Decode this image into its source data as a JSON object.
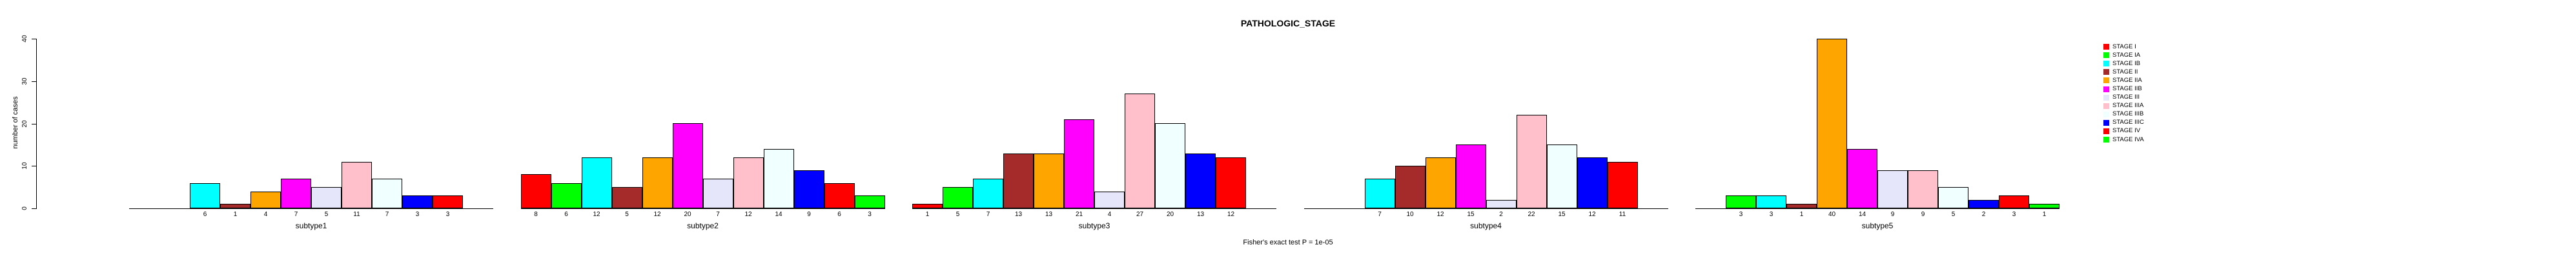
{
  "title": "PATHOLOGIC_STAGE",
  "caption": "Fisher's exact test P = 1e-05",
  "y_axis": {
    "label": "number of cases"
  },
  "chart_data": {
    "type": "bar",
    "title": "PATHOLOGIC_STAGE",
    "xlabel": "",
    "ylabel": "number of cases",
    "ylim": [
      0,
      40
    ],
    "y_ticks": [
      0,
      10,
      20,
      30,
      40
    ],
    "grid": false,
    "legend_position": "top-right",
    "annotation": "Fisher's exact test P = 1e-05",
    "stages": [
      {
        "name": "STAGE I",
        "color": "#FF0000"
      },
      {
        "name": "STAGE IA",
        "color": "#00FF00"
      },
      {
        "name": "STAGE IB",
        "color": "#00FFFF"
      },
      {
        "name": "STAGE II",
        "color": "#A52A2A"
      },
      {
        "name": "STAGE IIA",
        "color": "#FFA500"
      },
      {
        "name": "STAGE IIB",
        "color": "#FF00FF"
      },
      {
        "name": "STAGE III",
        "color": "#E6E6FA"
      },
      {
        "name": "STAGE IIIA",
        "color": "#FFC0CB"
      },
      {
        "name": "STAGE IIIB",
        "color": "#F0FFFF"
      },
      {
        "name": "STAGE IIIC",
        "color": "#0000FF"
      },
      {
        "name": "STAGE IV",
        "color": "#FF0000"
      },
      {
        "name": "STAGE IVA",
        "color": "#00FF00"
      }
    ],
    "categories": [
      "STAGE I",
      "STAGE IA",
      "STAGE IB",
      "STAGE II",
      "STAGE IIA",
      "STAGE IIB",
      "STAGE III",
      "STAGE IIIA",
      "STAGE IIIB",
      "STAGE IIIC",
      "STAGE IV",
      "STAGE IVA"
    ],
    "groups": [
      {
        "label": "subtype1",
        "values": [
          0,
          0,
          6,
          1,
          4,
          7,
          5,
          11,
          7,
          3,
          3,
          0
        ]
      },
      {
        "label": "subtype2",
        "values": [
          8,
          6,
          12,
          5,
          12,
          20,
          7,
          12,
          14,
          9,
          6,
          3
        ]
      },
      {
        "label": "subtype3",
        "values": [
          1,
          5,
          7,
          13,
          13,
          21,
          4,
          27,
          20,
          13,
          12,
          0
        ]
      },
      {
        "label": "subtype4",
        "values": [
          0,
          0,
          7,
          10,
          12,
          15,
          2,
          22,
          15,
          12,
          11,
          0
        ]
      },
      {
        "label": "subtype5",
        "values": [
          0,
          3,
          3,
          1,
          40,
          14,
          9,
          9,
          5,
          2,
          3,
          1
        ]
      }
    ]
  }
}
